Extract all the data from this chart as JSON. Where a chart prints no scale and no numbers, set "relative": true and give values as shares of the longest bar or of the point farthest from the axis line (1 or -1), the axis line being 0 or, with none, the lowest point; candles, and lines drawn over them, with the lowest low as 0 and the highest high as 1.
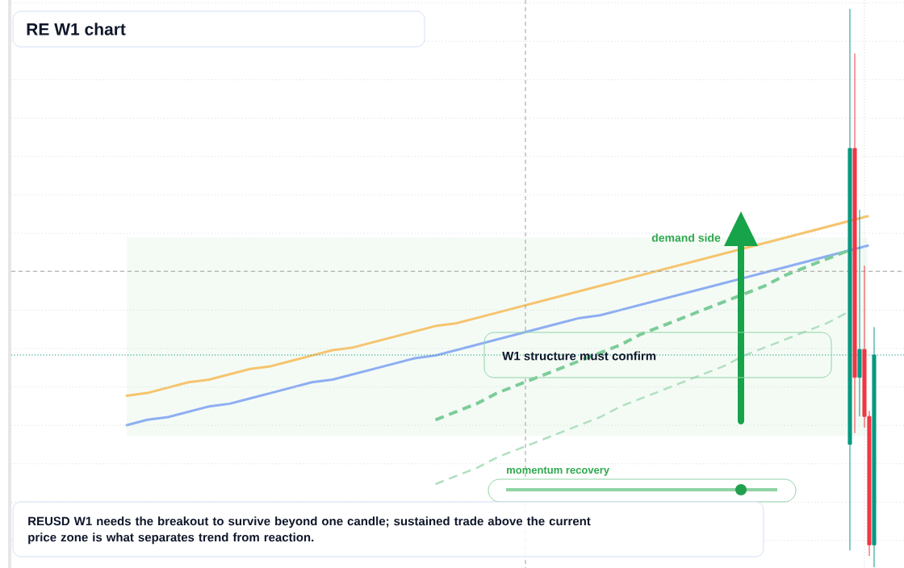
{
  "chart_data": [
    {
      "type": "line",
      "title": "RE W1 chart",
      "relative": true,
      "categories": [
        null,
        null,
        null,
        null,
        null,
        null,
        null,
        null,
        null,
        null,
        null,
        null,
        null,
        null,
        null,
        null,
        null,
        null,
        null,
        null,
        null,
        null,
        null,
        null,
        null,
        null,
        null,
        null,
        null,
        null,
        null,
        null,
        null,
        null,
        null,
        null,
        null
      ],
      "series": [
        {
          "color": "#f6c46e",
          "values": [
            0.33,
            0.34,
            0.36,
            0.38,
            0.39,
            0.41,
            0.43,
            0.44,
            0.46,
            0.48,
            0.5,
            0.51,
            0.53,
            0.55,
            0.57,
            0.59,
            0.6,
            0.62,
            0.64,
            0.66,
            0.68,
            0.7,
            0.72,
            0.74,
            0.76,
            0.78,
            0.8,
            0.82,
            0.84,
            0.86,
            0.88,
            0.9,
            0.92,
            0.94,
            0.96,
            0.98,
            1.0
          ]
        },
        {
          "color": "#8eaef2",
          "values": [
            0.22,
            0.24,
            0.25,
            0.27,
            0.29,
            0.3,
            0.32,
            0.34,
            0.36,
            0.38,
            0.39,
            0.41,
            0.43,
            0.45,
            0.47,
            0.48,
            0.5,
            0.52,
            0.54,
            0.56,
            0.58,
            0.6,
            0.62,
            0.63,
            0.65,
            0.67,
            0.69,
            0.71,
            0.73,
            0.75,
            0.77,
            0.79,
            0.81,
            0.83,
            0.85,
            0.87,
            0.89
          ]
        },
        {
          "color": "#7ccc98",
          "line_style": "dashed",
          "values": [
            null,
            null,
            null,
            null,
            null,
            null,
            null,
            null,
            null,
            null,
            null,
            null,
            null,
            null,
            null,
            0.24,
            0.27,
            0.3,
            0.34,
            0.37,
            0.4,
            0.43,
            0.46,
            0.49,
            0.52,
            0.56,
            0.59,
            0.62,
            0.65,
            0.68,
            0.71,
            0.74,
            0.78,
            0.81,
            0.84,
            0.87,
            null
          ]
        },
        {
          "color": "#b0e0c0",
          "line_style": "dashed",
          "values": [
            null,
            null,
            null,
            null,
            null,
            null,
            null,
            null,
            null,
            null,
            null,
            null,
            null,
            null,
            null,
            0.0,
            0.03,
            0.06,
            0.1,
            0.13,
            0.16,
            0.19,
            0.22,
            0.25,
            0.29,
            0.32,
            0.35,
            0.38,
            0.41,
            0.44,
            0.48,
            0.51,
            0.54,
            0.57,
            0.6,
            0.64,
            null
          ]
        }
      ],
      "bands": [
        {
          "axis": "y",
          "from": 0.18,
          "to": 0.92,
          "label": "demand side",
          "color": "#f4fbf5"
        }
      ],
      "annotations": [
        "W1 structure must confirm",
        "momentum recovery",
        "REUSD W1 needs the breakout to survive beyond one candle; sustained trade above the current price zone is what separates trend from reaction."
      ]
    },
    {
      "type": "candlestick",
      "relative": true,
      "categories": [
        null,
        null,
        null,
        null,
        null,
        null
      ],
      "ohlc": [
        [
          0.22,
          1.0,
          0.03,
          0.75
        ],
        [
          0.75,
          0.92,
          0.24,
          0.34
        ],
        [
          0.34,
          0.64,
          0.27,
          0.39
        ],
        [
          0.39,
          0.54,
          0.25,
          0.27
        ],
        [
          0.27,
          0.28,
          0.02,
          0.04
        ],
        [
          0.04,
          0.43,
          0.0,
          0.38
        ]
      ],
      "colors": [
        "#089981",
        "#f23645",
        "#089981",
        "#f23645",
        "#f23645",
        "#089981"
      ],
      "ref_lines": [
        {
          "axis": "y",
          "value": 0.53,
          "color": "#9e9e9e",
          "line_style": "dashed"
        },
        {
          "axis": "y",
          "value": 0.38,
          "color": "#089981",
          "line_style": "dotted"
        }
      ],
      "grid": "y"
    }
  ]
}
